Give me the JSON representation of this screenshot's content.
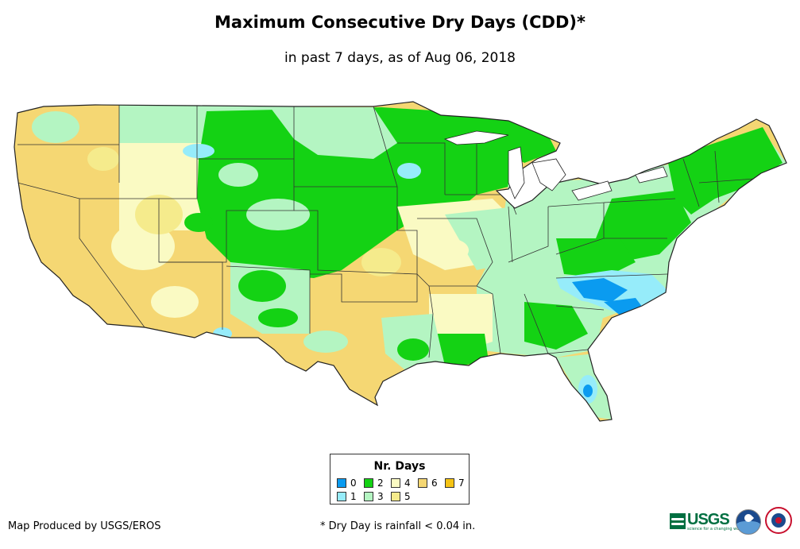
{
  "title": "Maximum Consecutive Dry Days (CDD)*",
  "subtitle": "in past 7 days, as of Aug 06, 2018",
  "legend": {
    "title": "Nr. Days",
    "items": [
      {
        "label": "0",
        "color": "#0a9bf0"
      },
      {
        "label": "1",
        "color": "#96ecfa"
      },
      {
        "label": "2",
        "color": "#14d214"
      },
      {
        "label": "3",
        "color": "#b4f5c2"
      },
      {
        "label": "4",
        "color": "#fafac3"
      },
      {
        "label": "5",
        "color": "#f5eb8c"
      },
      {
        "label": "6",
        "color": "#f5d773"
      },
      {
        "label": "7",
        "color": "#f5c314"
      }
    ]
  },
  "credit": "Map Produced by USGS/EROS",
  "footnote": "* Dry Day is rainfall < 0.04 in.",
  "logos": {
    "usgs": {
      "name": "USGS",
      "tagline": "science for a changing world"
    },
    "noaa": {
      "name": "NOAA"
    },
    "nws": {
      "name": "National Weather Service"
    }
  },
  "map_data": {
    "type": "choropleth",
    "region": "Contiguous United States",
    "variable": "Maximum consecutive dry days in past 7 days",
    "pattern_notes": [
      "Western US largely 6 days (yellow-orange)",
      "Northern Plains and Upper Midwest mostly 2 days (green)",
      "Southeast and Mid-Atlantic mixed 0-3 days",
      "Southern Plains (Texas, Oklahoma) mostly 6 days"
    ]
  }
}
